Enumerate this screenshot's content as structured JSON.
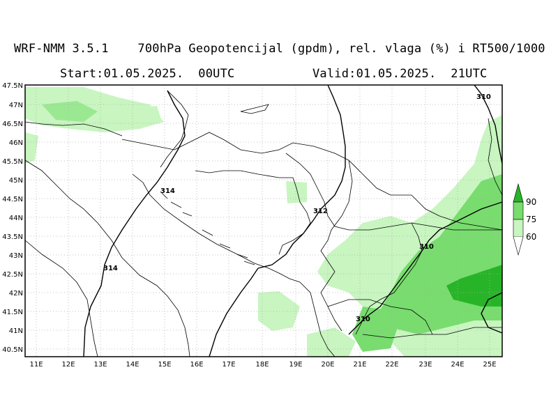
{
  "header": {
    "line1": "WRF-NMM 3.5.1    700hPa Geopotencijal (gpdm), rel. vlaga (%) i RT500/1000",
    "start": "Start:01.05.2025.  00UTC",
    "valid": "Valid:01.05.2025.  21UTC"
  },
  "map": {
    "lat_labels": [
      "47.5N",
      "47N",
      "46.5N",
      "46N",
      "45.5N",
      "45N",
      "44.5N",
      "44N",
      "43.5N",
      "43N",
      "42.5N",
      "42N",
      "41.5N",
      "41N",
      "40.5N"
    ],
    "lon_labels": [
      "11E",
      "12E",
      "13E",
      "14E",
      "15E",
      "16E",
      "17E",
      "18E",
      "19E",
      "20E",
      "21E",
      "22E",
      "23E",
      "24E",
      "25E"
    ],
    "contour_labels": [
      "310",
      "314",
      "314",
      "312",
      "310",
      "310"
    ],
    "humidity_colors": {
      "60": "#c8f5c0",
      "75": "#78dc6e",
      "90": "#28b428"
    }
  },
  "legend": {
    "levels": [
      "90",
      "75",
      "60"
    ],
    "colors": [
      "#28b428",
      "#78dc6e",
      "#c8f5c0"
    ]
  }
}
